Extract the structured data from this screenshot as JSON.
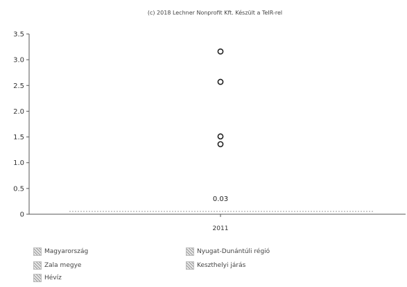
{
  "chart_data": {
    "type": "scatter",
    "title": "(c) 2018 Lechner Nonprofit Kft. Készült a TeIR-rel",
    "xlabel": "",
    "ylabel": "",
    "categories": [
      "2011"
    ],
    "ylim": [
      0,
      3.5
    ],
    "yticks": [
      "0",
      "0.5",
      "1.0",
      "1.5",
      "2.0",
      "2.5",
      "3.0",
      "3.5"
    ],
    "grid": false,
    "legend_position": "bottom",
    "points": [
      {
        "x": "2011",
        "y": 3.16
      },
      {
        "x": "2011",
        "y": 2.57
      },
      {
        "x": "2011",
        "y": 1.51
      },
      {
        "x": "2011",
        "y": 1.36
      },
      {
        "x": "2011",
        "y": 0.03
      }
    ],
    "data_labels": [
      {
        "x": "2011",
        "y": 0.03,
        "text": "0.03"
      }
    ],
    "legend": [
      "Magyarország",
      "Nyugat-Dunántúli régió",
      "Zala megye",
      "Keszthelyi járás",
      "Hévíz"
    ]
  }
}
